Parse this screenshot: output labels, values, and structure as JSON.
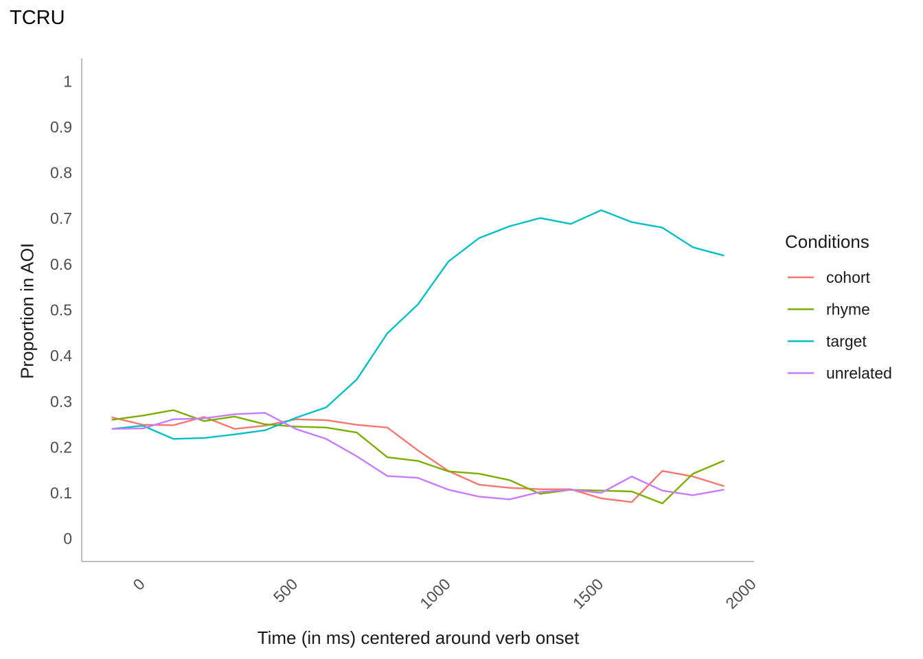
{
  "chart_data": {
    "type": "line",
    "title": "TCRU",
    "xlabel": "Time (in ms) centered around verb onset",
    "ylabel": "Proportion in AOI",
    "xlim": [
      -200,
      2000
    ],
    "ylim": [
      -0.05,
      1.05
    ],
    "x_ticks": [
      0,
      500,
      1000,
      1500,
      2000
    ],
    "x_tick_labels": [
      "0",
      "500",
      "1000",
      "1500",
      "2000"
    ],
    "y_ticks": [
      0,
      0.1,
      0.2,
      0.3,
      0.4,
      0.5,
      0.6,
      0.7,
      0.8,
      0.9,
      1
    ],
    "y_tick_labels": [
      "0",
      "0.1",
      "0.2",
      "0.3",
      "0.4",
      "0.5",
      "0.6",
      "0.7",
      "0.8",
      "0.9",
      "1"
    ],
    "grid": false,
    "legend": {
      "title": "Conditions",
      "position": "right"
    },
    "x": [
      -100,
      0,
      100,
      200,
      300,
      400,
      500,
      600,
      700,
      800,
      900,
      1000,
      1100,
      1200,
      1300,
      1400,
      1500,
      1600,
      1700,
      1800,
      1900
    ],
    "series": [
      {
        "name": "cohort",
        "color": "#F8766D",
        "values": [
          0.265,
          0.249,
          0.248,
          0.266,
          0.24,
          0.247,
          0.261,
          0.259,
          0.249,
          0.243,
          0.193,
          0.148,
          0.118,
          0.111,
          0.108,
          0.108,
          0.088,
          0.08,
          0.148,
          0.136,
          0.115
        ]
      },
      {
        "name": "rhyme",
        "color": "#7CAE00",
        "values": [
          0.26,
          0.269,
          0.281,
          0.257,
          0.267,
          0.25,
          0.245,
          0.243,
          0.232,
          0.178,
          0.17,
          0.147,
          0.142,
          0.128,
          0.098,
          0.107,
          0.105,
          0.103,
          0.077,
          0.142,
          0.17
        ]
      },
      {
        "name": "target",
        "color": "#00BFC4",
        "values": [
          0.24,
          0.247,
          0.218,
          0.22,
          0.228,
          0.237,
          0.264,
          0.287,
          0.348,
          0.449,
          0.512,
          0.606,
          0.657,
          0.683,
          0.701,
          0.688,
          0.718,
          0.692,
          0.68,
          0.637,
          0.619
        ]
      },
      {
        "name": "unrelated",
        "color": "#C77CFF",
        "values": [
          0.24,
          0.241,
          0.261,
          0.263,
          0.272,
          0.275,
          0.24,
          0.218,
          0.18,
          0.137,
          0.133,
          0.107,
          0.092,
          0.086,
          0.102,
          0.107,
          0.1,
          0.136,
          0.105,
          0.095,
          0.107
        ]
      }
    ]
  }
}
